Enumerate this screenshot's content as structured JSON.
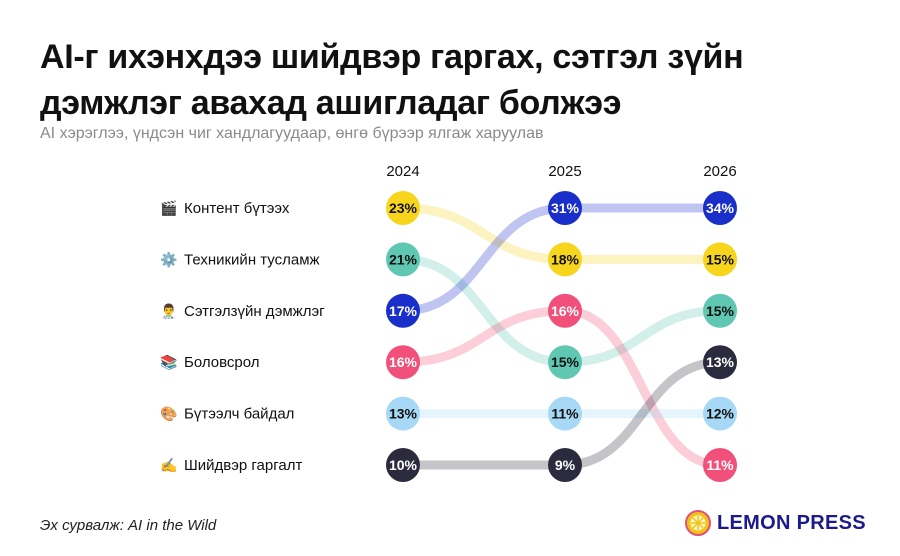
{
  "title": "AI-г ихэнхдээ шийдвэр гаргах, сэтгэл зүйн дэмжлэг авахад ашигладаг болжээ",
  "subtitle": "AI хэрэглээ, үндсэн чиг хандлагуудаар, өнгө бүрээр ялгаж харуулав",
  "source": "Эх сурвалж: AI in the Wild",
  "brand": "LEMON PRESS",
  "chart_data": {
    "type": "bump",
    "years": [
      "2024",
      "2025",
      "2026"
    ],
    "categories": [
      {
        "label": "Контент бүтээх",
        "icon": "🎬",
        "icon_name": "clapperboard-icon",
        "color": "#f7d51d",
        "text_color": "#111111",
        "values": [
          23,
          18,
          15
        ],
        "ranks": [
          1,
          2,
          2
        ]
      },
      {
        "label": "Техникийн тусламж",
        "icon": "⚙️",
        "icon_name": "gear-icon",
        "color": "#5fc7b2",
        "text_color": "#111111",
        "values": [
          21,
          15,
          15
        ],
        "ranks": [
          2,
          4,
          3
        ]
      },
      {
        "label": "Сэтгэлзүйн дэмжлэг",
        "icon": "👨‍⚕️",
        "icon_name": "health-worker-icon",
        "color": "#1a2fc9",
        "text_color": "#ffffff",
        "values": [
          17,
          31,
          34
        ],
        "ranks": [
          3,
          1,
          1
        ]
      },
      {
        "label": "Боловсрол",
        "icon": "📚",
        "icon_name": "books-icon",
        "color": "#f0507a",
        "text_color": "#ffffff",
        "values": [
          16,
          16,
          11
        ],
        "ranks": [
          4,
          3,
          6
        ]
      },
      {
        "label": "Бүтээлч байдал",
        "icon": "🎨",
        "icon_name": "palette-icon",
        "color": "#a7d8f5",
        "text_color": "#111111",
        "values": [
          13,
          11,
          12
        ],
        "ranks": [
          5,
          5,
          5
        ]
      },
      {
        "label": "Шийдвэр гаргалт",
        "icon": "✍️",
        "icon_name": "writing-hand-icon",
        "color": "#2b2b3d",
        "text_color": "#ffffff",
        "values": [
          10,
          9,
          13
        ],
        "ranks": [
          6,
          6,
          4
        ]
      }
    ],
    "value_suffix": "%"
  }
}
